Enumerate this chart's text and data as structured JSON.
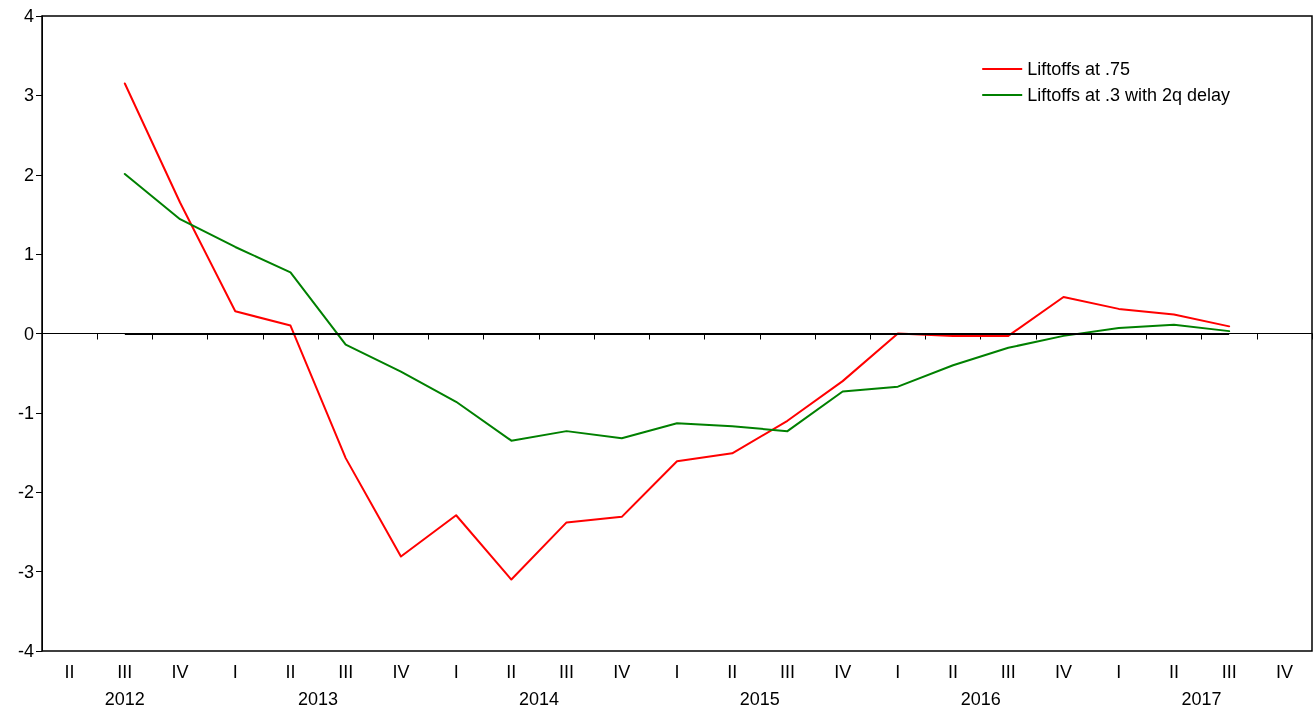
{
  "chart_data": {
    "type": "line",
    "categories": [
      "II",
      "III",
      "IV",
      "I",
      "II",
      "III",
      "IV",
      "I",
      "II",
      "III",
      "IV",
      "I",
      "II",
      "III",
      "IV",
      "I",
      "II",
      "III",
      "IV",
      "I",
      "II",
      "III",
      "IV"
    ],
    "series": [
      {
        "name": "Liftoffs at .75",
        "color": "#ff0000",
        "values": [
          null,
          3.15,
          1.65,
          0.28,
          0.1,
          -1.57,
          -2.81,
          -2.29,
          -3.1,
          -2.38,
          -2.31,
          -1.61,
          -1.51,
          -1.1,
          -0.6,
          0.0,
          -0.03,
          -0.03,
          0.46,
          0.31,
          0.24,
          0.09,
          null
        ]
      },
      {
        "name": "Liftoffs at .3 with 2q delay",
        "color": "#008000",
        "values": [
          null,
          2.01,
          1.44,
          1.09,
          0.77,
          -0.14,
          -0.48,
          -0.86,
          -1.35,
          -1.23,
          -1.32,
          -1.13,
          -1.17,
          -1.23,
          -0.73,
          -0.67,
          -0.4,
          -0.18,
          -0.03,
          0.07,
          0.11,
          0.03,
          null
        ]
      }
    ],
    "annotations": [
      "2012",
      "2013",
      "2014",
      "2015",
      "2016",
      "2017"
    ],
    "ref_lines": [
      {
        "axis": "y",
        "value": 0,
        "color": "#000000"
      }
    ],
    "ylim": [
      -4,
      4
    ],
    "yticks": [
      -4,
      -3,
      -2,
      -1,
      0,
      1,
      2,
      3,
      4
    ],
    "grid": false,
    "legend": "top right",
    "marker": "none",
    "line_style": "solid"
  }
}
